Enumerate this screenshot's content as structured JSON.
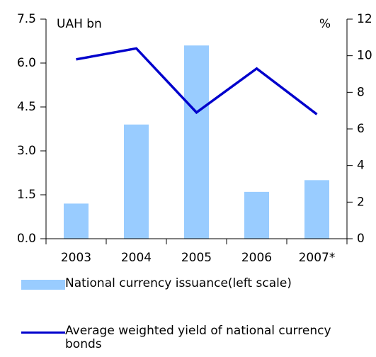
{
  "chart_data": {
    "type": "bar-line",
    "left_unit": "UAH bn",
    "right_unit": "%",
    "categories": [
      "2003",
      "2004",
      "2005",
      "2006",
      "2007*"
    ],
    "series": [
      {
        "name": "National currency issuance(left scale)",
        "color": "#99ccff",
        "type": "bar",
        "values": [
          1.2,
          3.9,
          6.6,
          1.6,
          2.0
        ]
      },
      {
        "name": "Average weighted yield of national currency bonds",
        "color": "#0000cc",
        "type": "line",
        "axis": "y2",
        "values": [
          9.8,
          10.4,
          6.9,
          9.3,
          6.8
        ]
      }
    ],
    "ylim": [
      0,
      7.5
    ],
    "yticks": [
      {
        "value": 0,
        "label": "0.0"
      },
      1.5,
      {
        "value": 3,
        "label": "3.0"
      },
      4.5,
      {
        "value": 6,
        "label": "6.0"
      },
      7.5
    ],
    "y2lim": [
      0,
      12
    ],
    "y2ticks": [
      0,
      2,
      4,
      6,
      8,
      10,
      12
    ]
  }
}
